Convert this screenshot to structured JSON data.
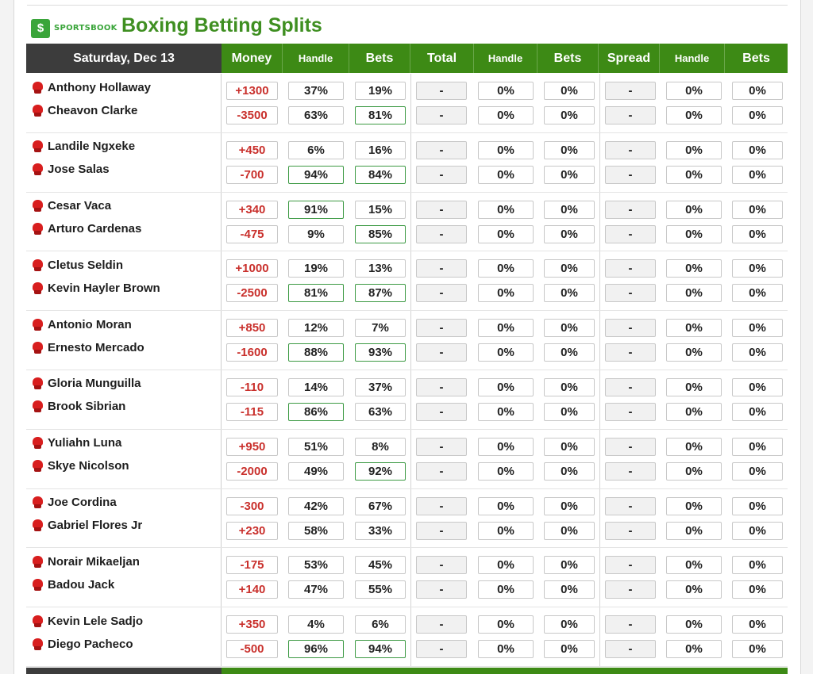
{
  "brand": {
    "logo_text": "SPORTSBOOK",
    "logo_glyph": "$",
    "logo_color": "#3aa53a"
  },
  "title": "Boxing Betting Splits",
  "header": {
    "date": "Saturday, Dec 13",
    "columns": [
      "Money",
      "Handle",
      "Bets",
      "Total",
      "Handle",
      "Bets",
      "Spread",
      "Handle",
      "Bets"
    ]
  },
  "colors": {
    "header_green": "#3d8a15",
    "money_red": "#c9302c",
    "highlight_border": "#3d9a44"
  },
  "fights": [
    {
      "fighters": [
        "Anthony Hollaway",
        "Cheavon Clarke"
      ],
      "money": [
        "+1300",
        "-3500"
      ],
      "handle": [
        "37%",
        "63%"
      ],
      "bets": [
        "19%",
        "81%"
      ],
      "handle_hi": [
        false,
        false
      ],
      "bets_hi": [
        false,
        true
      ],
      "total": [
        "-",
        "-"
      ],
      "total_handle": [
        "0%",
        "0%"
      ],
      "total_bets": [
        "0%",
        "0%"
      ],
      "spread": [
        "-",
        "-"
      ],
      "spread_handle": [
        "0%",
        "0%"
      ],
      "spread_bets": [
        "0%",
        "0%"
      ]
    },
    {
      "fighters": [
        "Landile Ngxeke",
        "Jose Salas"
      ],
      "money": [
        "+450",
        "-700"
      ],
      "handle": [
        "6%",
        "94%"
      ],
      "bets": [
        "16%",
        "84%"
      ],
      "handle_hi": [
        false,
        true
      ],
      "bets_hi": [
        false,
        true
      ],
      "total": [
        "-",
        "-"
      ],
      "total_handle": [
        "0%",
        "0%"
      ],
      "total_bets": [
        "0%",
        "0%"
      ],
      "spread": [
        "-",
        "-"
      ],
      "spread_handle": [
        "0%",
        "0%"
      ],
      "spread_bets": [
        "0%",
        "0%"
      ]
    },
    {
      "fighters": [
        "Cesar Vaca",
        "Arturo Cardenas"
      ],
      "money": [
        "+340",
        "-475"
      ],
      "handle": [
        "91%",
        "9%"
      ],
      "bets": [
        "15%",
        "85%"
      ],
      "handle_hi": [
        true,
        false
      ],
      "bets_hi": [
        false,
        true
      ],
      "total": [
        "-",
        "-"
      ],
      "total_handle": [
        "0%",
        "0%"
      ],
      "total_bets": [
        "0%",
        "0%"
      ],
      "spread": [
        "-",
        "-"
      ],
      "spread_handle": [
        "0%",
        "0%"
      ],
      "spread_bets": [
        "0%",
        "0%"
      ]
    },
    {
      "fighters": [
        "Cletus Seldin",
        "Kevin Hayler Brown"
      ],
      "money": [
        "+1000",
        "-2500"
      ],
      "handle": [
        "19%",
        "81%"
      ],
      "bets": [
        "13%",
        "87%"
      ],
      "handle_hi": [
        false,
        true
      ],
      "bets_hi": [
        false,
        true
      ],
      "total": [
        "-",
        "-"
      ],
      "total_handle": [
        "0%",
        "0%"
      ],
      "total_bets": [
        "0%",
        "0%"
      ],
      "spread": [
        "-",
        "-"
      ],
      "spread_handle": [
        "0%",
        "0%"
      ],
      "spread_bets": [
        "0%",
        "0%"
      ]
    },
    {
      "fighters": [
        "Antonio Moran",
        "Ernesto Mercado"
      ],
      "money": [
        "+850",
        "-1600"
      ],
      "handle": [
        "12%",
        "88%"
      ],
      "bets": [
        "7%",
        "93%"
      ],
      "handle_hi": [
        false,
        true
      ],
      "bets_hi": [
        false,
        true
      ],
      "total": [
        "-",
        "-"
      ],
      "total_handle": [
        "0%",
        "0%"
      ],
      "total_bets": [
        "0%",
        "0%"
      ],
      "spread": [
        "-",
        "-"
      ],
      "spread_handle": [
        "0%",
        "0%"
      ],
      "spread_bets": [
        "0%",
        "0%"
      ]
    },
    {
      "fighters": [
        "Gloria Munguilla",
        "Brook Sibrian"
      ],
      "money": [
        "-110",
        "-115"
      ],
      "handle": [
        "14%",
        "86%"
      ],
      "bets": [
        "37%",
        "63%"
      ],
      "handle_hi": [
        false,
        true
      ],
      "bets_hi": [
        false,
        false
      ],
      "total": [
        "-",
        "-"
      ],
      "total_handle": [
        "0%",
        "0%"
      ],
      "total_bets": [
        "0%",
        "0%"
      ],
      "spread": [
        "-",
        "-"
      ],
      "spread_handle": [
        "0%",
        "0%"
      ],
      "spread_bets": [
        "0%",
        "0%"
      ]
    },
    {
      "fighters": [
        "Yuliahn Luna",
        "Skye Nicolson"
      ],
      "money": [
        "+950",
        "-2000"
      ],
      "handle": [
        "51%",
        "49%"
      ],
      "bets": [
        "8%",
        "92%"
      ],
      "handle_hi": [
        false,
        false
      ],
      "bets_hi": [
        false,
        true
      ],
      "total": [
        "-",
        "-"
      ],
      "total_handle": [
        "0%",
        "0%"
      ],
      "total_bets": [
        "0%",
        "0%"
      ],
      "spread": [
        "-",
        "-"
      ],
      "spread_handle": [
        "0%",
        "0%"
      ],
      "spread_bets": [
        "0%",
        "0%"
      ]
    },
    {
      "fighters": [
        "Joe Cordina",
        "Gabriel Flores Jr"
      ],
      "money": [
        "-300",
        "+230"
      ],
      "handle": [
        "42%",
        "58%"
      ],
      "bets": [
        "67%",
        "33%"
      ],
      "handle_hi": [
        false,
        false
      ],
      "bets_hi": [
        false,
        false
      ],
      "total": [
        "-",
        "-"
      ],
      "total_handle": [
        "0%",
        "0%"
      ],
      "total_bets": [
        "0%",
        "0%"
      ],
      "spread": [
        "-",
        "-"
      ],
      "spread_handle": [
        "0%",
        "0%"
      ],
      "spread_bets": [
        "0%",
        "0%"
      ]
    },
    {
      "fighters": [
        "Norair Mikaeljan",
        "Badou Jack"
      ],
      "money": [
        "-175",
        "+140"
      ],
      "handle": [
        "53%",
        "47%"
      ],
      "bets": [
        "45%",
        "55%"
      ],
      "handle_hi": [
        false,
        false
      ],
      "bets_hi": [
        false,
        false
      ],
      "total": [
        "-",
        "-"
      ],
      "total_handle": [
        "0%",
        "0%"
      ],
      "total_bets": [
        "0%",
        "0%"
      ],
      "spread": [
        "-",
        "-"
      ],
      "spread_handle": [
        "0%",
        "0%"
      ],
      "spread_bets": [
        "0%",
        "0%"
      ]
    },
    {
      "fighters": [
        "Kevin Lele Sadjo",
        "Diego Pacheco"
      ],
      "money": [
        "+350",
        "-500"
      ],
      "handle": [
        "4%",
        "96%"
      ],
      "bets": [
        "6%",
        "94%"
      ],
      "handle_hi": [
        false,
        true
      ],
      "bets_hi": [
        false,
        true
      ],
      "total": [
        "-",
        "-"
      ],
      "total_handle": [
        "0%",
        "0%"
      ],
      "total_bets": [
        "0%",
        "0%"
      ],
      "spread": [
        "-",
        "-"
      ],
      "spread_handle": [
        "0%",
        "0%"
      ],
      "spread_bets": [
        "0%",
        "0%"
      ]
    }
  ]
}
